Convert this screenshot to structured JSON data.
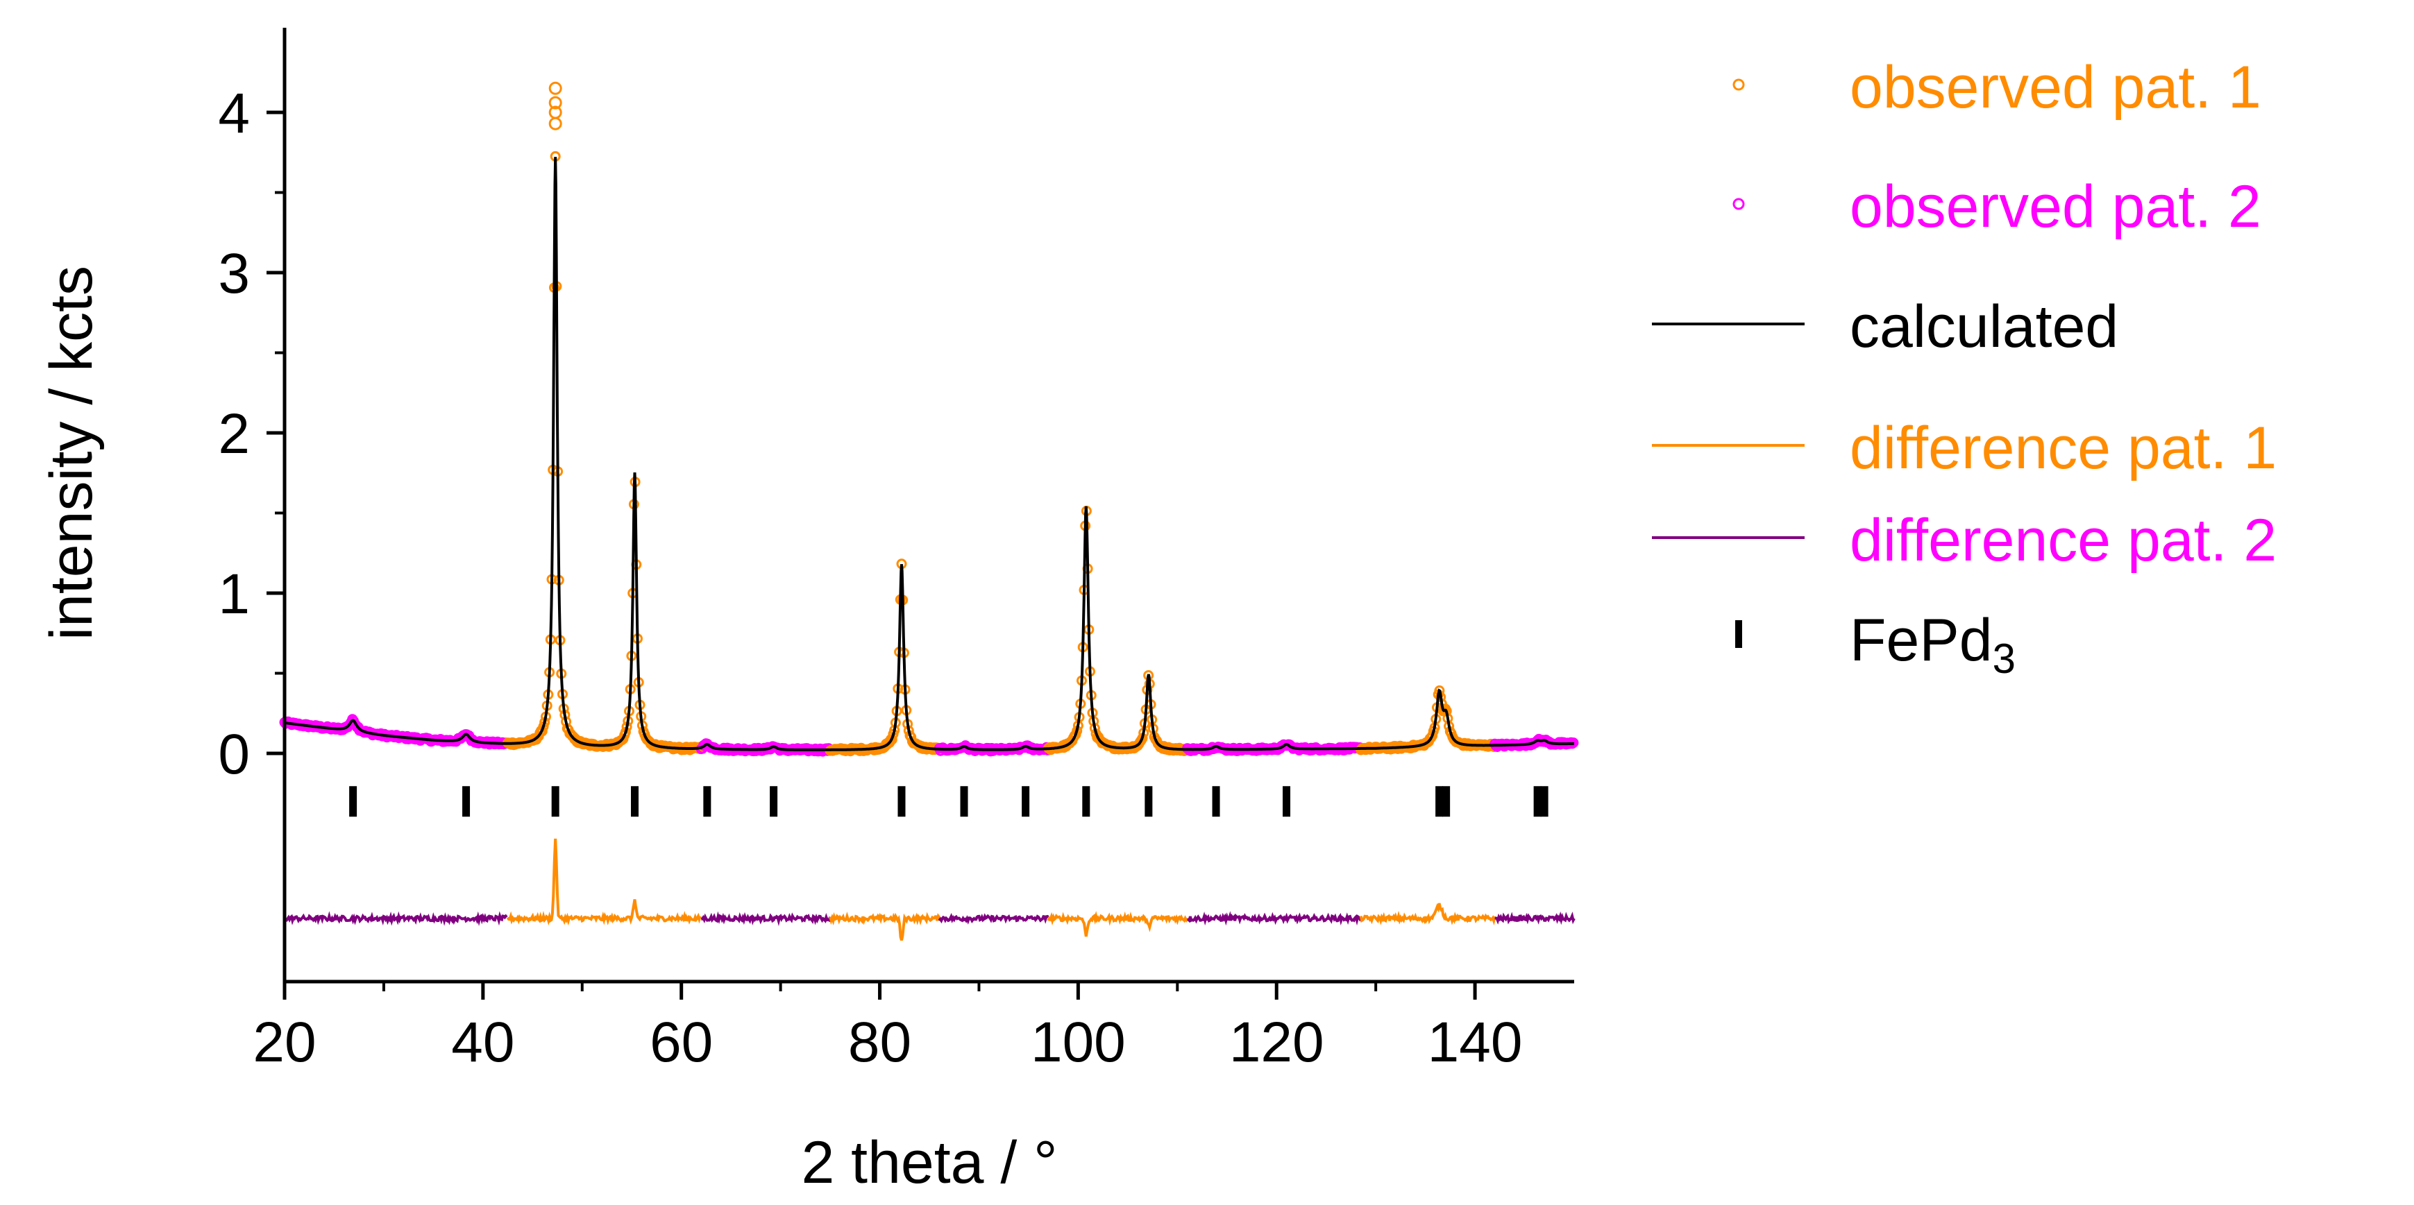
{
  "chart_data": {
    "type": "line",
    "title": "",
    "xlabel": "2 theta / °",
    "ylabel": "intensity / kcts",
    "xlim": [
      20,
      150
    ],
    "ylim": [
      -1.45,
      4.5
    ],
    "x_ticks": [
      "20",
      "40",
      "60",
      "80",
      "100",
      "120",
      "140"
    ],
    "y_ticks": [
      "0",
      "1",
      "2",
      "3",
      "4"
    ],
    "grid": false,
    "legend_position": "right",
    "colors": {
      "observed_1": "#ff8c00",
      "observed_2": "#ff00ff",
      "calculated": "#000000",
      "difference_1": "#ff8c00",
      "difference_2": "#800080",
      "reflections": "#000000"
    },
    "legend": [
      {
        "key": "obs1",
        "label": "observed pat. 1",
        "marker": "open-circle",
        "color": "#ff8c00",
        "text_color": "#ff8c00"
      },
      {
        "key": "obs2",
        "label": "observed pat. 2",
        "marker": "open-circle",
        "color": "#ff00ff",
        "text_color": "#ff00ff"
      },
      {
        "key": "calc",
        "label": "calculated",
        "marker": "line",
        "color": "#000000",
        "text_color": "#000000"
      },
      {
        "key": "diff1",
        "label": "difference pat. 1",
        "marker": "line",
        "color": "#ff8c00",
        "text_color": "#ff8c00"
      },
      {
        "key": "diff2",
        "label": "difference pat. 2",
        "marker": "line",
        "color": "#800080",
        "text_color": "#ff00ff"
      },
      {
        "key": "refl",
        "label": "FePd",
        "label_subscript": "3",
        "marker": "tick",
        "color": "#000000",
        "text_color": "#000000"
      }
    ],
    "background": {
      "x": [
        20,
        25,
        30,
        35,
        40,
        45,
        50,
        60,
        70,
        80,
        90,
        100,
        110,
        120,
        130,
        140,
        150
      ],
      "y": [
        0.19,
        0.15,
        0.11,
        0.08,
        0.06,
        0.045,
        0.035,
        0.025,
        0.02,
        0.02,
        0.02,
        0.02,
        0.02,
        0.025,
        0.03,
        0.045,
        0.06
      ]
    },
    "peaks": [
      {
        "x": 26.9,
        "height": 0.07,
        "width": 0.9
      },
      {
        "x": 38.3,
        "height": 0.05,
        "width": 0.9
      },
      {
        "x": 47.3,
        "height": 3.68,
        "width": 0.45
      },
      {
        "x": 55.3,
        "height": 1.72,
        "width": 0.45
      },
      {
        "x": 62.6,
        "height": 0.03,
        "width": 0.8
      },
      {
        "x": 69.3,
        "height": 0.02,
        "width": 0.8
      },
      {
        "x": 82.2,
        "height": 1.16,
        "width": 0.5
      },
      {
        "x": 88.5,
        "height": 0.02,
        "width": 0.8
      },
      {
        "x": 94.7,
        "height": 0.02,
        "width": 0.8
      },
      {
        "x": 100.8,
        "height": 1.52,
        "width": 0.55
      },
      {
        "x": 107.1,
        "height": 0.47,
        "width": 0.55
      },
      {
        "x": 113.9,
        "height": 0.02,
        "width": 0.8
      },
      {
        "x": 121.0,
        "height": 0.03,
        "width": 0.8
      },
      {
        "x": 136.4,
        "height": 0.32,
        "width": 0.7
      },
      {
        "x": 137.1,
        "height": 0.16,
        "width": 0.7
      },
      {
        "x": 146.3,
        "height": 0.02,
        "width": 0.8
      },
      {
        "x": 147.0,
        "height": 0.02,
        "width": 0.8
      }
    ],
    "observed_segments": [
      {
        "pattern": 2,
        "x_range": [
          20,
          42.5
        ]
      },
      {
        "pattern": 1,
        "x_range": [
          42.5,
          62
        ]
      },
      {
        "pattern": 2,
        "x_range": [
          62,
          75
        ]
      },
      {
        "pattern": 1,
        "x_range": [
          75,
          86
        ]
      },
      {
        "pattern": 2,
        "x_range": [
          86,
          97
        ]
      },
      {
        "pattern": 1,
        "x_range": [
          97,
          111
        ]
      },
      {
        "pattern": 2,
        "x_range": [
          111,
          128.5
        ]
      },
      {
        "pattern": 1,
        "x_range": [
          128.5,
          142
        ]
      },
      {
        "pattern": 2,
        "x_range": [
          142,
          150
        ]
      }
    ],
    "observed_peak_tops": [
      {
        "x": 47.3,
        "y": [
          3.93,
          4.0,
          4.06,
          4.15
        ]
      }
    ],
    "difference": {
      "offset": -1.03,
      "features": [
        {
          "x": 47.3,
          "amplitude": 0.5,
          "width": 0.25
        },
        {
          "x": 55.3,
          "amplitude": 0.12,
          "width": 0.25
        },
        {
          "x": 82.2,
          "amplitude": -0.15,
          "width": 0.25
        },
        {
          "x": 100.8,
          "amplitude": -0.1,
          "width": 0.3
        },
        {
          "x": 107.1,
          "amplitude": -0.05,
          "width": 0.3
        },
        {
          "x": 136.4,
          "amplitude": 0.08,
          "width": 0.6
        }
      ]
    },
    "reflection_ticks": {
      "label": "FePd3",
      "y_center": -0.3,
      "x": [
        26.9,
        38.3,
        47.3,
        55.3,
        62.6,
        69.3,
        82.2,
        88.5,
        94.7,
        100.8,
        107.1,
        113.9,
        121.0,
        136.4,
        137.1,
        146.3,
        147.0
      ]
    }
  }
}
